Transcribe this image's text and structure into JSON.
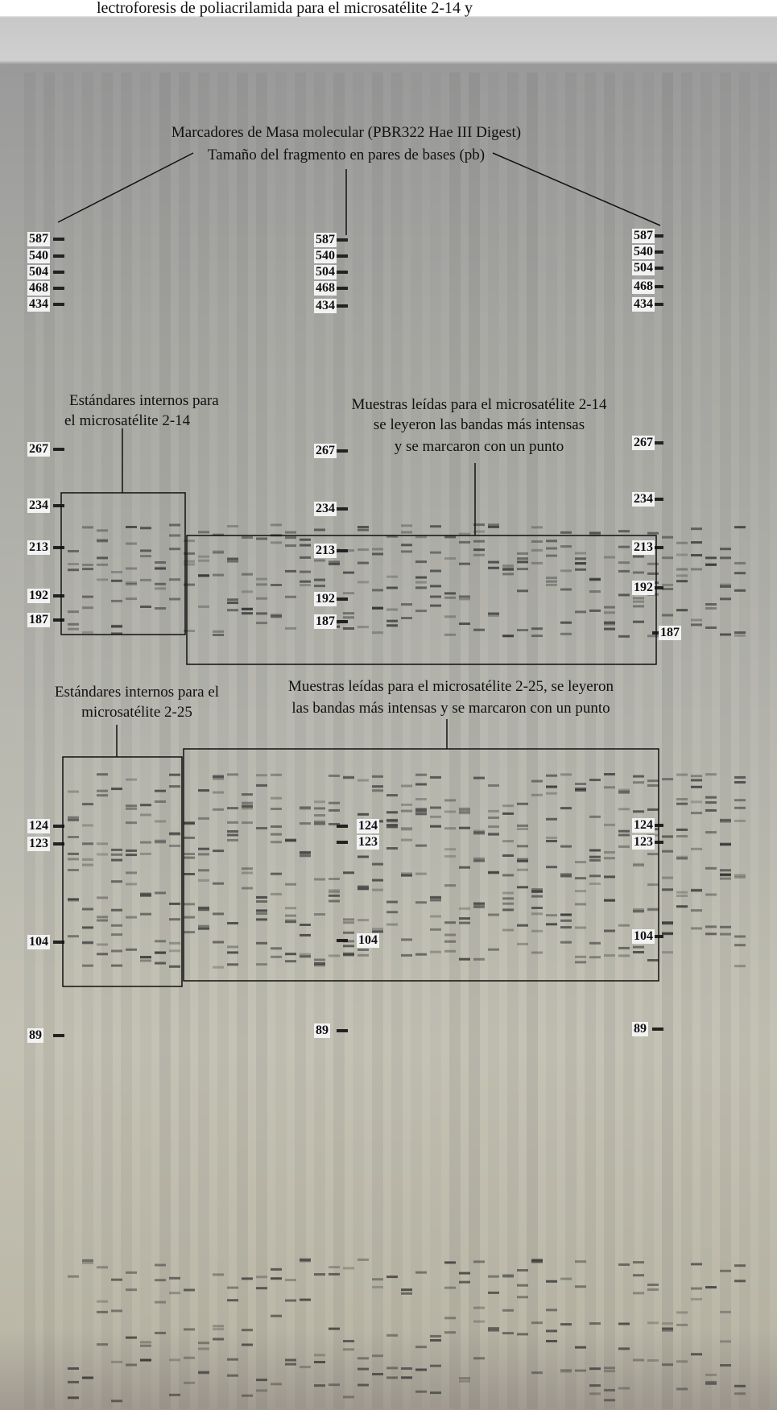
{
  "header_text": "lectroforesis de poliacrilamida para el microsatélite 2-14 y",
  "annotations": {
    "markers": [
      "Marcadores de Masa molecular (PBR322 Hae III Digest)",
      "Tamaño del fragmento en pares de bases (pb)"
    ],
    "standards_2_14": [
      "Estándares internos para",
      "el microsatélite 2-14"
    ],
    "samples_2_14": [
      "Muestras leídas para el microsatélite 2-14",
      "se leyeron las bandas más intensas",
      "y se marcaron con un punto"
    ],
    "standards_2_25": [
      "Estándares internos para el",
      "microsatélite 2-25"
    ],
    "samples_2_25": [
      "Muestras leídas para el microsatélite 2-25, se leyeron",
      "las bandas más intensas y se marcaron con un punto"
    ]
  },
  "ladders": {
    "left": [
      587,
      540,
      504,
      468,
      434,
      267,
      234,
      213,
      192,
      187,
      124,
      123,
      104,
      89
    ],
    "middle": [
      587,
      540,
      504,
      468,
      434,
      267,
      234,
      213,
      192,
      187,
      124,
      123,
      104,
      89
    ],
    "right": [
      587,
      540,
      504,
      468,
      434,
      267,
      234,
      213,
      192,
      187,
      124,
      123,
      104,
      89
    ]
  }
}
